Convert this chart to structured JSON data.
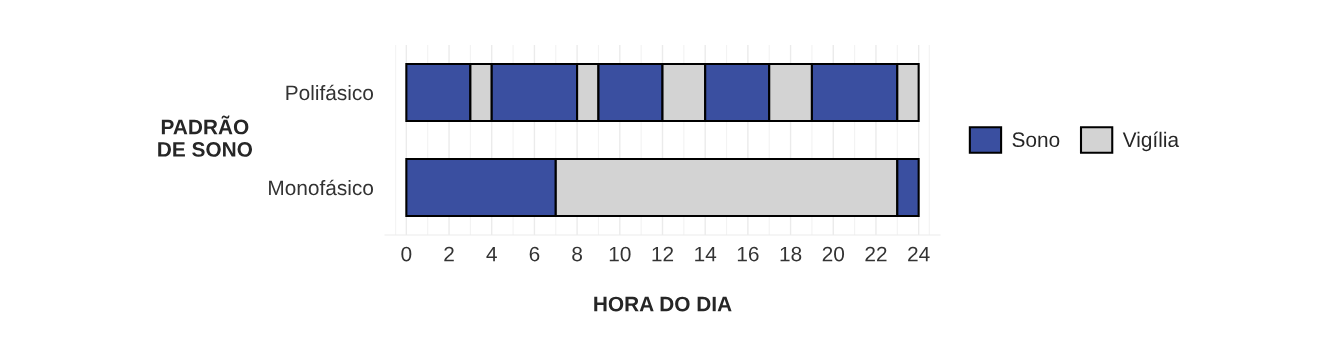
{
  "chart_data": {
    "type": "bar",
    "orientation": "horizontal",
    "stacked": true,
    "categories": [
      "Polifásico",
      "Monofásico"
    ],
    "xlabel": "HORA DO DIA",
    "ylabel": "PADRÃO\nDE SONO",
    "xlim": [
      -1,
      25
    ],
    "xticks": [
      0,
      2,
      4,
      6,
      8,
      10,
      12,
      14,
      16,
      18,
      20,
      22,
      24
    ],
    "grid": "x",
    "legend": "right",
    "series": [
      {
        "name": "Sono",
        "color": "#3a4fa0",
        "values": [
          3,
          7
        ]
      },
      {
        "name": "Vigília",
        "color": "#d3d3d3",
        "values": [
          1,
          16
        ]
      },
      {
        "color": "#3a4fa0",
        "values": [
          4,
          1
        ]
      },
      {
        "color": "#d3d3d3",
        "values": [
          1,
          null
        ]
      },
      {
        "color": "#3a4fa0",
        "values": [
          3,
          null
        ]
      },
      {
        "color": "#d3d3d3",
        "values": [
          2,
          null
        ]
      },
      {
        "color": "#3a4fa0",
        "values": [
          3,
          null
        ]
      },
      {
        "color": "#d3d3d3",
        "values": [
          2,
          null
        ]
      },
      {
        "color": "#3a4fa0",
        "values": [
          4,
          null
        ]
      },
      {
        "color": "#d3d3d3",
        "values": [
          1,
          null
        ]
      }
    ]
  }
}
